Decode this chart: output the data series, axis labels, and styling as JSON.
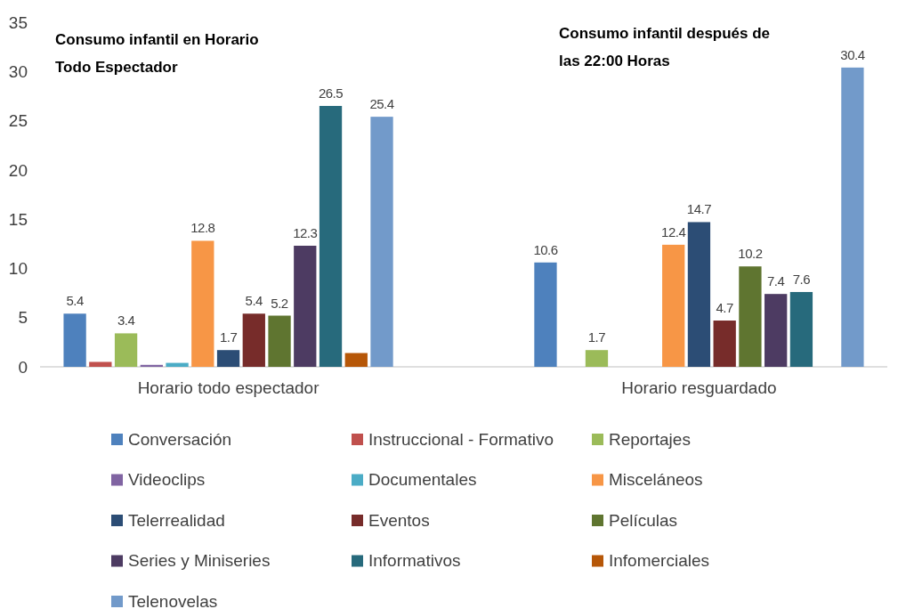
{
  "chart_data": {
    "type": "bar",
    "categories": [
      "Horario todo espectador",
      "Horario resguardado"
    ],
    "ylim": [
      0,
      35
    ],
    "yticks": [
      0,
      5,
      10,
      15,
      20,
      25,
      30,
      35
    ],
    "grid": false,
    "legend": "bottom",
    "annotations": [
      "Consumo infantil en Horario Todo Espectador",
      "Consumo infantil después de las 22:00 Horas"
    ],
    "series": [
      {
        "name": "Conversación",
        "color": "#4e81bd",
        "values": [
          5.4,
          10.6
        ],
        "value_labels": [
          "5.4",
          "10.6"
        ]
      },
      {
        "name": "Instruccional - Formativo",
        "color": "#c0504d",
        "values": [
          0.5,
          null
        ],
        "value_labels": [
          null,
          null
        ]
      },
      {
        "name": "Reportajes",
        "color": "#9bbb59",
        "values": [
          3.4,
          1.7
        ],
        "value_labels": [
          "3.4",
          "1.7"
        ]
      },
      {
        "name": "Videoclips",
        "color": "#8064a2",
        "values": [
          0.2,
          null
        ],
        "value_labels": [
          null,
          null
        ]
      },
      {
        "name": "Documentales",
        "color": "#4bacc6",
        "values": [
          0.4,
          null
        ],
        "value_labels": [
          null,
          null
        ]
      },
      {
        "name": "Misceláneos",
        "color": "#f79646",
        "values": [
          12.8,
          12.4
        ],
        "value_labels": [
          "12.8",
          "12.4"
        ]
      },
      {
        "name": "Telerrealidad",
        "color": "#2c4d75",
        "values": [
          1.7,
          14.7
        ],
        "value_labels": [
          "1.7",
          "14.7"
        ]
      },
      {
        "name": "Eventos",
        "color": "#772c2a",
        "values": [
          5.4,
          4.7
        ],
        "value_labels": [
          "5.4",
          "4.7"
        ]
      },
      {
        "name": "Películas",
        "color": "#5f7530",
        "values": [
          5.2,
          10.2
        ],
        "value_labels": [
          "5.2",
          "10.2"
        ]
      },
      {
        "name": "Series y Miniseries",
        "color": "#4d3b62",
        "values": [
          12.3,
          7.4
        ],
        "value_labels": [
          "12.3",
          "7.4"
        ]
      },
      {
        "name": "Informativos",
        "color": "#276a7c",
        "values": [
          26.5,
          7.6
        ],
        "value_labels": [
          "26.5",
          "7.6"
        ]
      },
      {
        "name": "Infomerciales",
        "color": "#b65708",
        "values": [
          1.4,
          null
        ],
        "value_labels": [
          null,
          null
        ]
      },
      {
        "name": "Telenovelas",
        "color": "#729aca",
        "values": [
          25.4,
          30.4
        ],
        "value_labels": [
          "25.4",
          "30.4"
        ]
      }
    ]
  }
}
